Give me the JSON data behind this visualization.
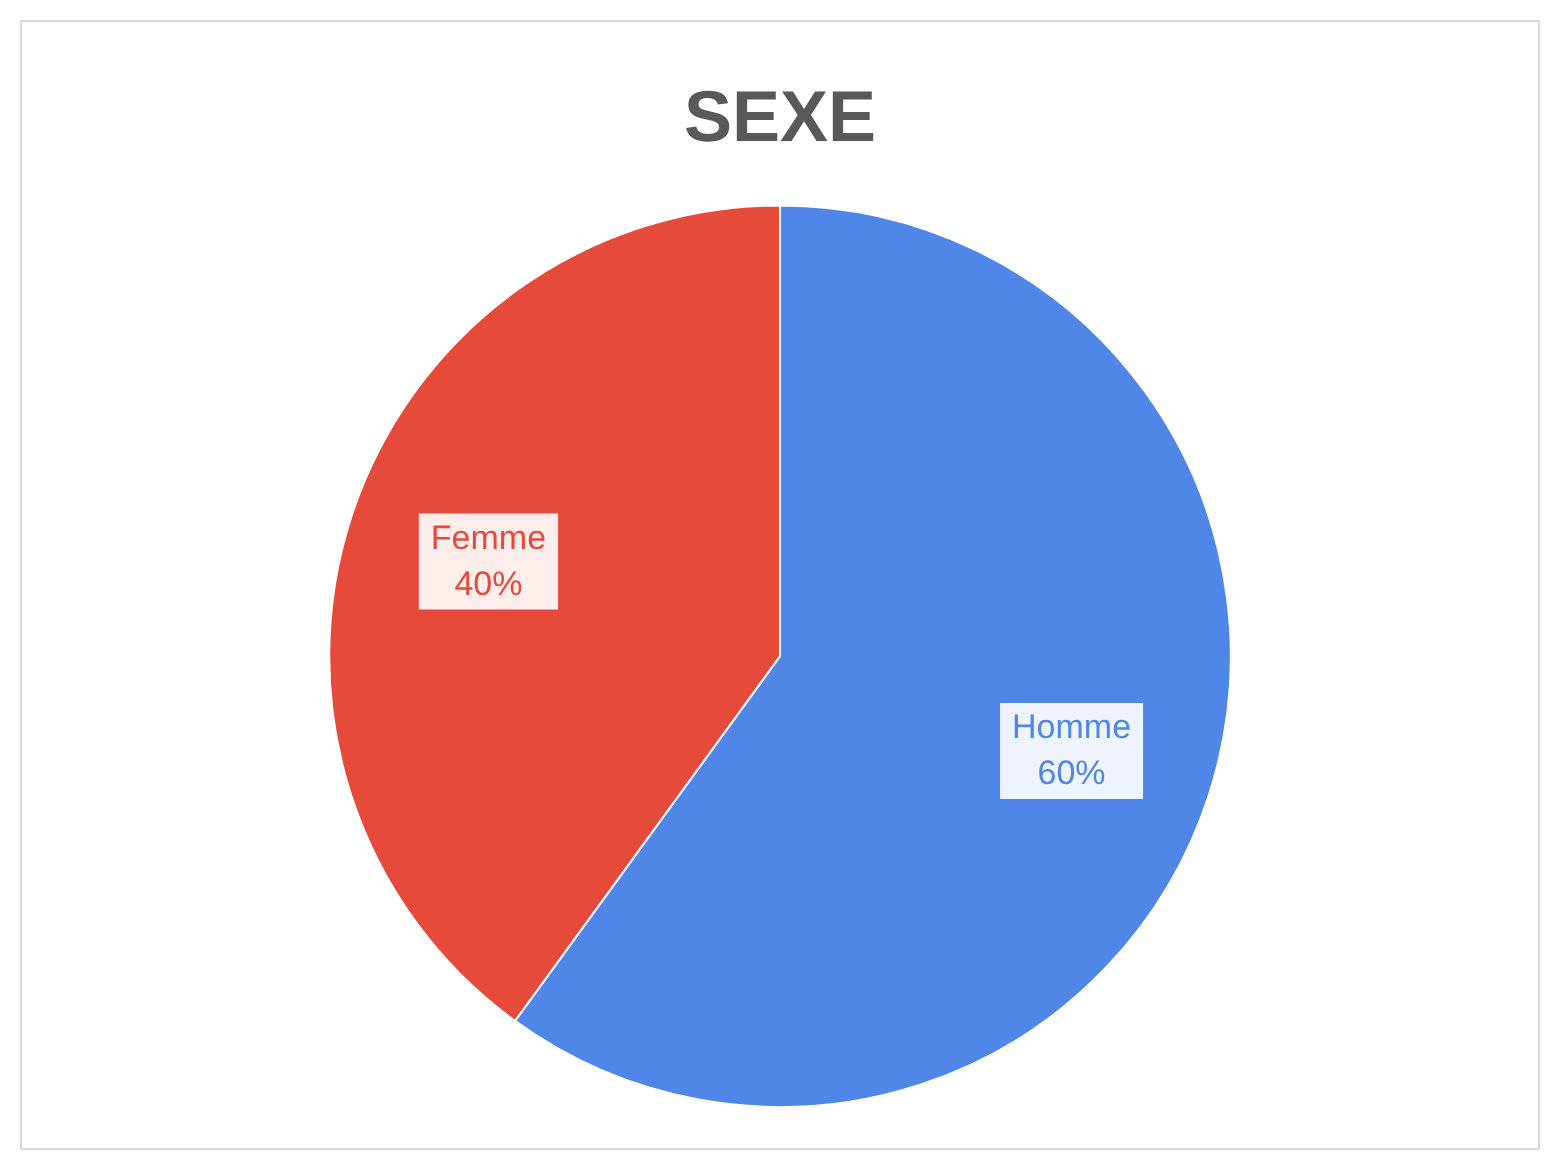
{
  "chart_data": {
    "type": "pie",
    "title": "SEXE",
    "categories": [
      "Homme",
      "Femme"
    ],
    "values": [
      60,
      40
    ],
    "colors": [
      "#4f86e8",
      "#e64a3b"
    ],
    "value_labels": [
      "60%",
      "40%"
    ],
    "legend": false
  }
}
